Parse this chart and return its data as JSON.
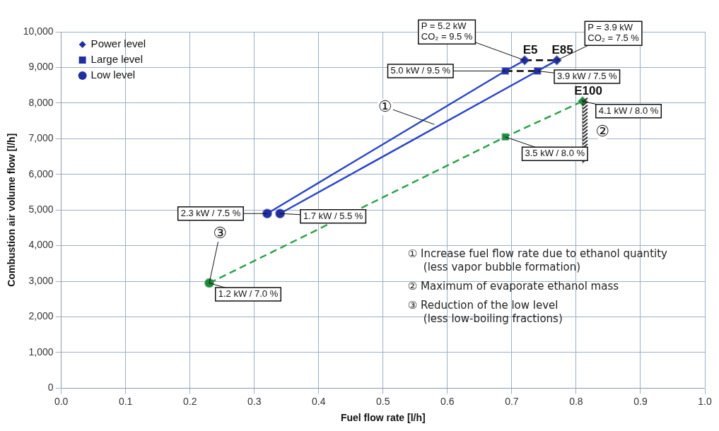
{
  "chart_data": {
    "type": "line",
    "xlabel": "Fuel flow rate [l/h]",
    "ylabel": "Combustion air volume flow [l/h]",
    "xlim": [
      0,
      1
    ],
    "ylim": [
      0,
      10000
    ],
    "xticks": [
      {
        "value": 0,
        "label": "0.0"
      },
      {
        "value": 0.1,
        "label": "0.1"
      },
      {
        "value": 0.2,
        "label": "0.2"
      },
      {
        "value": 0.3,
        "label": "0.3"
      },
      {
        "value": 0.4,
        "label": "0.4"
      },
      {
        "value": 0.5,
        "label": "0.5"
      },
      {
        "value": 0.6,
        "label": "0.6"
      },
      {
        "value": 0.7,
        "label": "0.7"
      },
      {
        "value": 0.8,
        "label": "0.8"
      },
      {
        "value": 0.9,
        "label": "0.9"
      },
      {
        "value": 1,
        "label": "1.0"
      }
    ],
    "yticks": [
      0,
      {
        "value": 1000,
        "label": "1,000"
      },
      {
        "value": 2000,
        "label": "2,000"
      },
      {
        "value": 3000,
        "label": "3,000"
      },
      {
        "value": 4000,
        "label": "4,000"
      },
      {
        "value": 5000,
        "label": "5,000"
      },
      {
        "value": 6000,
        "label": "6,000"
      },
      {
        "value": 7000,
        "label": "7,000"
      },
      {
        "value": 8000,
        "label": "8,000"
      },
      {
        "value": 9000,
        "label": "9,000"
      },
      {
        "value": 10000,
        "label": "10,000"
      }
    ],
    "grid": true,
    "legend": "top left",
    "series": [
      {
        "name": "E5",
        "type": "line",
        "color": "#2b46c8",
        "x": [
          0.32,
          0.69,
          0.72
        ],
        "values": [
          4900,
          8900,
          9200
        ],
        "marker": "none",
        "line_style": "solid"
      },
      {
        "name": "E85",
        "type": "line",
        "color": "#2b46c8",
        "x": [
          0.34,
          0.74,
          0.77
        ],
        "values": [
          4900,
          8900,
          9200
        ],
        "marker": "none",
        "line_style": "solid"
      },
      {
        "name": "E100",
        "type": "line",
        "color": "#2aa34a",
        "x": [
          0.23,
          0.69,
          0.81
        ],
        "values": [
          2950,
          7050,
          8050
        ],
        "marker": "none",
        "line_style": "dashed"
      },
      {
        "type": "line",
        "color": "#000000",
        "x": [
          0.72,
          0.77
        ],
        "values": [
          9200,
          9200
        ],
        "marker": "none",
        "line_style": "dashed"
      },
      {
        "type": "line",
        "color": "#000000",
        "x": [
          0.69,
          0.74
        ],
        "values": [
          8900,
          8900
        ],
        "marker": "none",
        "line_style": "dashed"
      },
      {
        "name": "Power level",
        "type": "scatter",
        "marker": "diamond",
        "color": "#1f2fa0",
        "colors": [
          "#1f2fa0",
          "#1f2fa0",
          "#1e8a3a"
        ],
        "x": [
          0.72,
          0.77,
          0.81
        ],
        "values": [
          9200,
          9200,
          8050
        ]
      },
      {
        "name": "Large level",
        "type": "scatter",
        "marker": "square",
        "color": "#1f2fa0",
        "colors": [
          "#1f2fa0",
          "#1f2fa0",
          "#1e8a3a"
        ],
        "x": [
          0.69,
          0.74,
          0.69
        ],
        "values": [
          8900,
          8900,
          7050
        ]
      },
      {
        "name": "Low level",
        "type": "scatter",
        "marker": "circle",
        "color": "#1f2fa0",
        "colors": [
          "#1f2fa0",
          "#1f2fa0",
          "#1e8a3a"
        ],
        "x": [
          0.32,
          0.34,
          0.23
        ],
        "values": [
          4900,
          4900,
          2950
        ]
      }
    ],
    "ref_lines": [
      {
        "axis": "x",
        "value": 0.81,
        "label": "②"
      }
    ],
    "annotations": [
      {
        "text": "P = 5.2 kW\nCO₂ = 9.5 %",
        "x": 0.72,
        "y": 9200
      },
      {
        "text": "P = 3.9 kW\nCO₂ = 7.5 %",
        "x": 0.77,
        "y": 9200
      },
      {
        "text": "5.0 kW / 9.5 %",
        "x": 0.69,
        "y": 8900
      },
      {
        "text": "3.9 kW / 7.5 %",
        "x": 0.74,
        "y": 8900
      },
      {
        "text": "4.1 kW / 8.0 %",
        "x": 0.81,
        "y": 8050
      },
      {
        "text": "3.5 kW / 8.0 %",
        "x": 0.69,
        "y": 7050
      },
      {
        "text": "2.3 kW / 7.5 %",
        "x": 0.32,
        "y": 4900
      },
      {
        "text": "1.7 kW / 5.5 %",
        "x": 0.34,
        "y": 4900
      },
      {
        "text": "1.2 kW / 7.0 %",
        "x": 0.23,
        "y": 2950
      },
      {
        "text": "①",
        "x": 0.58,
        "y": 7400
      },
      {
        "text": "③",
        "x": 0.23,
        "y": 2950
      },
      "① Increase fuel flow rate due to ethanol quantity\n(less vapor bubble formation)",
      "② Maximum of evaporate ethanol mass",
      "③ Reduction of the low level\n(less low-boiling fractions)"
    ]
  }
}
